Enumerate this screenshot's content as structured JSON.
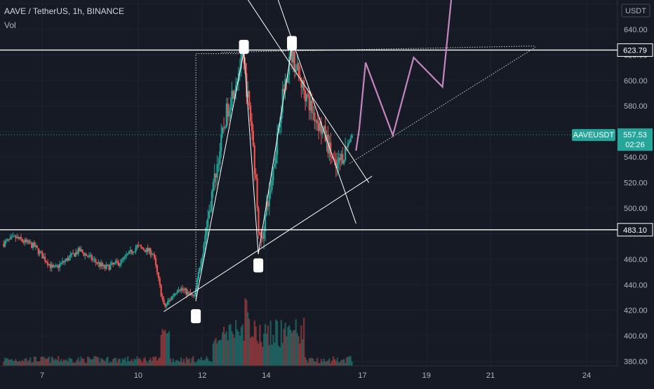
{
  "header": {
    "symbol_line": "AAVE / TetherUS, 1h, BINANCE",
    "indicator": "Vol"
  },
  "price_scale": {
    "currency": "USDT",
    "ticks": [
      380,
      400,
      420,
      440,
      460,
      480,
      500,
      520,
      540,
      560,
      580,
      600,
      620,
      640,
      660
    ],
    "tick_labels": [
      "380.00",
      "400.00",
      "420.00",
      "440.00",
      "460.00",
      "480.00",
      "500.00",
      "520.00",
      "540.00",
      "560.00",
      "580.00",
      "600.00",
      "620.00",
      "640.00",
      "660.00"
    ],
    "min": 376.5,
    "max": 663
  },
  "time_scale": {
    "labels": [
      {
        "t": 7,
        "text": "7"
      },
      {
        "t": 10,
        "text": "10"
      },
      {
        "t": 12,
        "text": "12"
      },
      {
        "t": 14,
        "text": "14"
      },
      {
        "t": 17,
        "text": "17"
      },
      {
        "t": 19,
        "text": "19"
      },
      {
        "t": 21,
        "text": "21"
      },
      {
        "t": 24,
        "text": "24"
      }
    ]
  },
  "levels": [
    {
      "name": "resistance",
      "price": 623.79,
      "label": "623.79"
    },
    {
      "name": "support",
      "price": 483.1,
      "label": "483.10"
    }
  ],
  "last_price": {
    "symbol": "AAVEUSDT",
    "price": 557.53,
    "price_label": "557.53",
    "countdown": "02:26"
  },
  "colors": {
    "background": "#161a25",
    "up": "#26a69a",
    "down": "#ef5350",
    "projection": "#c586c0",
    "lines": "#ffffff",
    "last_price": "#26a69a"
  },
  "chart_data": {
    "type": "candlestick",
    "x_unit": "day of month",
    "x_range": [
      5.75,
      25.2
    ],
    "y_range": [
      376.5,
      663
    ],
    "candles_keypoints": [
      {
        "t": 5.8,
        "price": 472
      },
      {
        "t": 6.2,
        "price": 477
      },
      {
        "t": 6.8,
        "price": 470
      },
      {
        "t": 7.4,
        "price": 452
      },
      {
        "t": 8.2,
        "price": 467
      },
      {
        "t": 9.0,
        "price": 453
      },
      {
        "t": 9.5,
        "price": 458
      },
      {
        "t": 10.0,
        "price": 470
      },
      {
        "t": 10.5,
        "price": 465
      },
      {
        "t": 10.85,
        "price": 422
      },
      {
        "t": 11.3,
        "price": 438
      },
      {
        "t": 11.8,
        "price": 430
      },
      {
        "t": 12.3,
        "price": 505
      },
      {
        "t": 12.8,
        "price": 575
      },
      {
        "t": 13.3,
        "price": 618
      },
      {
        "t": 13.6,
        "price": 560
      },
      {
        "t": 13.85,
        "price": 470
      },
      {
        "t": 14.2,
        "price": 520
      },
      {
        "t": 14.5,
        "price": 580
      },
      {
        "t": 14.8,
        "price": 623
      },
      {
        "t": 15.1,
        "price": 600
      },
      {
        "t": 15.5,
        "price": 575
      },
      {
        "t": 15.9,
        "price": 555
      },
      {
        "t": 16.2,
        "price": 530
      },
      {
        "t": 16.5,
        "price": 545
      },
      {
        "t": 16.7,
        "price": 557.53
      }
    ],
    "pattern_points": [
      {
        "t": 11.8,
        "price": 427.5
      },
      {
        "t": 13.3,
        "price": 623
      },
      {
        "t": 13.75,
        "price": 464
      },
      {
        "t": 14.8,
        "price": 626
      }
    ],
    "projection_path": [
      {
        "t": 16.8,
        "price": 545
      },
      {
        "t": 16.9,
        "price": 562
      },
      {
        "t": 17.1,
        "price": 614
      },
      {
        "t": 17.95,
        "price": 557
      },
      {
        "t": 18.6,
        "price": 618
      },
      {
        "t": 19.5,
        "price": 595
      },
      {
        "t": 19.8,
        "price": 670
      }
    ],
    "trendlines": [
      {
        "name": "rising-trendline",
        "style": "solid",
        "from": {
          "t": 10.8,
          "price": 419
        },
        "to": {
          "t": 17.3,
          "price": 525
        }
      },
      {
        "name": "rising-trendline-extension",
        "style": "dotted",
        "from": {
          "t": 16.6,
          "price": 535
        },
        "to": {
          "t": 22.4,
          "price": 626
        }
      },
      {
        "name": "upper-flat-extension",
        "style": "dotted",
        "from": {
          "t": 12.6,
          "price": 622
        },
        "to": {
          "t": 22.4,
          "price": 627
        }
      },
      {
        "name": "channel-upper-line",
        "style": "solid",
        "from": {
          "t": 13.3,
          "price": 668
        },
        "to": {
          "t": 17.2,
          "price": 520
        }
      },
      {
        "name": "channel-lower-line",
        "style": "solid",
        "from": {
          "t": 14.3,
          "price": 668
        },
        "to": {
          "t": 16.8,
          "price": 488
        }
      },
      {
        "name": "dotted-vertical-guide",
        "style": "dotted",
        "from": {
          "t": 11.8,
          "price": 427
        },
        "to": {
          "t": 11.8,
          "price": 621
        }
      },
      {
        "name": "dotted-top-guide",
        "style": "dotted",
        "from": {
          "t": 11.8,
          "price": 621
        },
        "to": {
          "t": 13.3,
          "price": 621
        }
      }
    ]
  }
}
